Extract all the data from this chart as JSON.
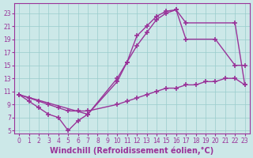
{
  "bg_color": "#cce8e8",
  "grid_color": "#99cccc",
  "line_color": "#993399",
  "marker": "+",
  "markersize": 4,
  "linewidth": 1.0,
  "xlabel": "Windchill (Refroidissement éolien,°C)",
  "xlabel_fontsize": 7,
  "ylabel_ticks": [
    5,
    7,
    9,
    11,
    13,
    15,
    17,
    19,
    21,
    23
  ],
  "xlim": [
    -0.5,
    23.5
  ],
  "ylim": [
    4.5,
    24.5
  ],
  "xtick_fontsize": 5.5,
  "ytick_fontsize": 5.5,
  "line1_x": [
    0,
    1,
    2,
    3,
    4,
    5,
    6,
    7,
    10,
    11,
    12,
    13,
    14,
    15,
    16,
    17,
    22,
    23
  ],
  "line1_y": [
    10.5,
    9.5,
    8.5,
    7.5,
    7.0,
    5.0,
    6.5,
    7.5,
    12.5,
    15.5,
    19.5,
    21.0,
    22.5,
    23.3,
    23.5,
    21.5,
    21.5,
    12.0
  ],
  "line2_x": [
    0,
    1,
    2,
    3,
    4,
    5,
    6,
    7,
    10,
    11,
    12,
    13,
    14,
    15,
    16,
    17,
    18,
    19,
    20,
    21,
    22,
    23
  ],
  "line2_y": [
    10.5,
    10.0,
    9.5,
    9.0,
    8.5,
    8.0,
    8.0,
    8.0,
    9.0,
    9.5,
    10.0,
    10.5,
    11.0,
    11.5,
    11.5,
    12.0,
    12.0,
    12.5,
    12.5,
    13.0,
    13.0,
    12.0
  ],
  "line3_x": [
    0,
    7,
    10,
    11,
    12,
    13,
    14,
    15,
    16,
    17,
    20,
    22,
    23
  ],
  "line3_y": [
    10.5,
    7.5,
    13.0,
    15.5,
    18.0,
    20.0,
    22.0,
    23.0,
    23.5,
    19.0,
    19.0,
    15.0,
    15.0
  ]
}
